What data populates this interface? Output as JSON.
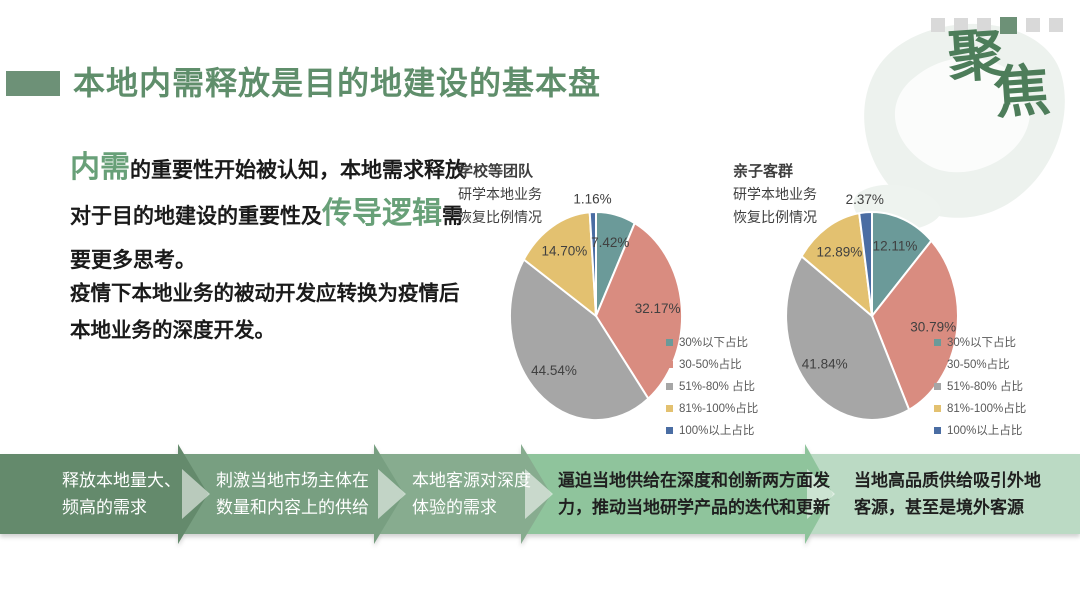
{
  "slide": {
    "title": "本地内需释放是目的地建设的基本盘",
    "title_color": "#5f8e6b",
    "accent_bar_color": "#6d9177",
    "background": "#ffffff"
  },
  "pagination": {
    "count": 6,
    "active_index": 3,
    "active_color": "#6d9177",
    "inactive_color": "#d9d9d9"
  },
  "logo": {
    "char1": "聚",
    "char2": "焦",
    "color": "#4d7d5a"
  },
  "intro": {
    "text_color": "#1a1a1a",
    "highlight_color": "#68a078",
    "paragraph1_lines": [
      [
        {
          "text": "内需",
          "highlight": true
        },
        {
          "text": "的重要性开始被认知，本地需求释放",
          "highlight": false
        }
      ],
      [
        {
          "text": "对于目的地建设的重要性及",
          "highlight": false
        },
        {
          "text": "传导逻辑",
          "highlight": true
        },
        {
          "text": "需",
          "highlight": false
        }
      ],
      [
        {
          "text": "要更多思考。",
          "highlight": false
        }
      ]
    ],
    "paragraph2_lines": [
      [
        {
          "text": "疫情下本地业务的被动开发应转换为疫情后",
          "highlight": false
        }
      ],
      [
        {
          "text": "本地业务的深度开发。",
          "highlight": false
        }
      ]
    ]
  },
  "chart_data": [
    {
      "type": "pie",
      "title": "学校等团队",
      "subtitle_lines": [
        "研学本地业务",
        "恢复比例情况"
      ],
      "categories": [
        "30%以下占比",
        "30-50%占比",
        "51%-80% 占比",
        "81%-100%占比",
        "100%以上占比"
      ],
      "values": [
        7.42,
        32.17,
        44.54,
        14.7,
        1.16
      ],
      "labels": [
        "7.42%",
        "32.17%",
        "44.54%",
        "14.70%",
        "1.16%"
      ],
      "colors": [
        "#6b9a99",
        "#d98c80",
        "#a6a6a6",
        "#e3c170",
        "#4a6da3"
      ],
      "label_color": "#404040",
      "legend_text_color": "#595959",
      "start_angle_deg": 0,
      "direction": "clockwise",
      "legend_position": "bottom-right"
    },
    {
      "type": "pie",
      "title": "亲子客群",
      "subtitle_lines": [
        "研学本地业务",
        "恢复比例情况"
      ],
      "categories": [
        "30%以下占比",
        "30-50%占比",
        "51%-80% 占比",
        "81%-100%占比",
        "100%以上占比"
      ],
      "values": [
        12.11,
        30.79,
        41.84,
        12.89,
        2.37
      ],
      "labels": [
        "12.11%",
        "30.79%",
        "41.84%",
        "12.89%",
        "2.37%"
      ],
      "colors": [
        "#6b9a99",
        "#d98c80",
        "#a6a6a6",
        "#e3c170",
        "#4a6da3"
      ],
      "label_color": "#404040",
      "legend_text_color": "#595959",
      "start_angle_deg": 0,
      "direction": "clockwise",
      "legend_position": "bottom-right"
    }
  ],
  "process": {
    "steps": [
      {
        "lines": [
          "释放本地量大、",
          "频高的需求"
        ],
        "fill": "#648a6c",
        "text_color": "#ffffff"
      },
      {
        "lines": [
          "刺激当地市场主体在",
          "数量和内容上的供给"
        ],
        "fill": "#789f81",
        "text_color": "#ffffff"
      },
      {
        "lines": [
          "本地客源对深度",
          "体验的需求"
        ],
        "fill": "#87ac8f",
        "text_color": "#ffffff"
      },
      {
        "lines": [
          "逼迫当地供给在深度和创新两方面发",
          "力，推动当地研学产品的迭代和更新"
        ],
        "fill": "#8fc49c",
        "text_color": "#1f1f1f"
      },
      {
        "lines": [
          "当地高品质供给吸引外地",
          "客源，甚至是境外客源"
        ],
        "fill": "#bbdac4",
        "text_color": "#1f1f1f"
      }
    ]
  }
}
